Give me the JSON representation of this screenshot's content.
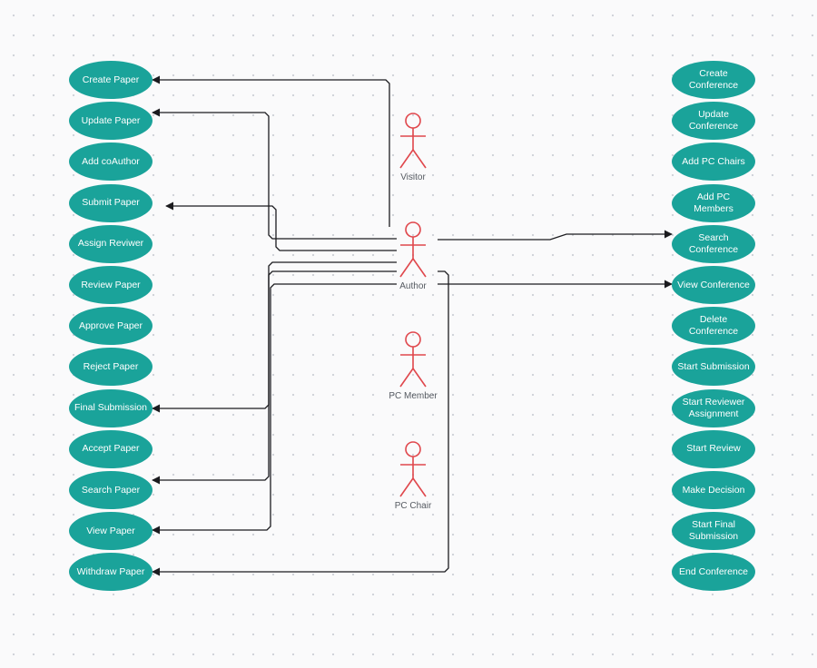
{
  "colors": {
    "usecase_fill": "#1aa39a",
    "usecase_text": "#ffffff",
    "actor_stroke": "#e0474c",
    "connector": "#1b1b1f",
    "canvas_dots": "#cfd2d8"
  },
  "actors": [
    {
      "id": "visitor",
      "label": "Visitor",
      "icon": "stick-figure-icon"
    },
    {
      "id": "author",
      "label": "Author",
      "icon": "stick-figure-icon"
    },
    {
      "id": "pc_member",
      "label": "PC Member",
      "icon": "stick-figure-icon"
    },
    {
      "id": "pc_chair",
      "label": "PC Chair",
      "icon": "stick-figure-icon"
    }
  ],
  "paper_use_cases": [
    "Create Paper",
    "Update Paper",
    "Add coAuthor",
    "Submit Paper",
    "Assign Reviwer",
    "Review Paper",
    "Approve Paper",
    "Reject Paper",
    "Final Submission",
    "Accept Paper",
    "Search Paper",
    "View Paper",
    "Withdraw Paper"
  ],
  "conference_use_cases": [
    "Create Conference",
    "Update Conference",
    "Add PC Chairs",
    "Add PC Members",
    "Search Conference",
    "View Conference",
    "Delete Conference",
    "Start Submission",
    "Start Reviewer Assignment",
    "Start Review",
    "Make Decision",
    "Start Final Submission",
    "End Conference"
  ],
  "connections": [
    {
      "from": "Author",
      "to": "Create Paper"
    },
    {
      "from": "Author",
      "to": "Update Paper"
    },
    {
      "from": "Author",
      "to": "Submit Paper"
    },
    {
      "from": "Author",
      "to": "Final Submission"
    },
    {
      "from": "Author",
      "to": "Search Paper"
    },
    {
      "from": "Author",
      "to": "View Paper"
    },
    {
      "from": "Author",
      "to": "Withdraw Paper"
    },
    {
      "from": "Author",
      "to": "Search Conference"
    },
    {
      "from": "Author",
      "to": "View Conference"
    }
  ]
}
